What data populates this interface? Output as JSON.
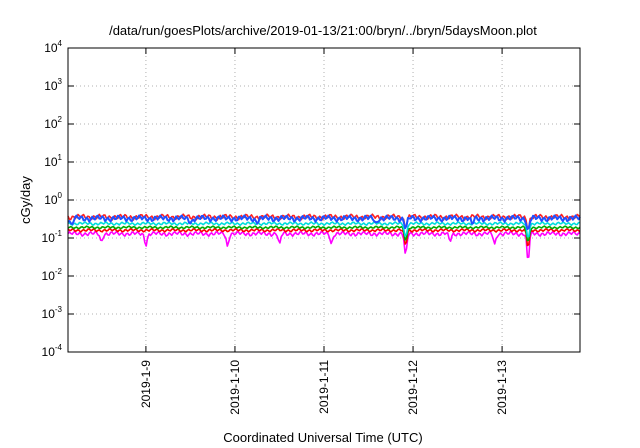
{
  "chart_data": {
    "type": "line",
    "title": "/data/run/goesPlots/archive/2019-01-13/21:00/bryn/../bryn/5daysMoon.plot",
    "xlabel": "Coordinated Universal Time (UTC)",
    "ylabel": "cGy/day",
    "y_scale": "log",
    "ylim": [
      0.0001,
      10000
    ],
    "xlim": [
      "2019-01-08T03:00",
      "2019-01-13T21:00"
    ],
    "grid": true,
    "legend": "none",
    "y_ticks": [
      {
        "base": "10",
        "exp": "-4",
        "value": 0.0001
      },
      {
        "base": "10",
        "exp": "-3",
        "value": 0.001
      },
      {
        "base": "10",
        "exp": "-2",
        "value": 0.01
      },
      {
        "base": "10",
        "exp": "-1",
        "value": 0.1
      },
      {
        "base": "10",
        "exp": "0",
        "value": 1
      },
      {
        "base": "10",
        "exp": "1",
        "value": 10
      },
      {
        "base": "10",
        "exp": "2",
        "value": 100
      },
      {
        "base": "10",
        "exp": "3",
        "value": 1000
      },
      {
        "base": "10",
        "exp": "4",
        "value": 10000
      }
    ],
    "x_ticks": [
      {
        "label": "2019-1-9",
        "value": "2019-01-09T00:00"
      },
      {
        "label": "2019-1-10",
        "value": "2019-01-10T00:00"
      },
      {
        "label": "2019-1-11",
        "value": "2019-01-11T00:00"
      },
      {
        "label": "2019-1-12",
        "value": "2019-01-12T00:00"
      },
      {
        "label": "2019-1-13",
        "value": "2019-01-13T00:00"
      }
    ],
    "series": [
      {
        "color": "#ff00ff",
        "base": 0.13,
        "amp": 0.012,
        "dips": [
          [
            "2019-01-08T12:00",
            0.08
          ],
          [
            "2019-01-09T00:00",
            0.06
          ],
          [
            "2019-01-09T22:00",
            0.06
          ],
          [
            "2019-01-10T12:00",
            0.07
          ],
          [
            "2019-01-11T02:00",
            0.07
          ],
          [
            "2019-01-11T22:00",
            0.03
          ],
          [
            "2019-01-12T10:00",
            0.08
          ],
          [
            "2019-01-12T22:00",
            0.07
          ],
          [
            "2019-01-13T07:00",
            0.015
          ]
        ]
      },
      {
        "color": "#ff0000",
        "base": 0.16,
        "amp": 0.01,
        "dips": [
          [
            "2019-01-11T22:00",
            0.06
          ],
          [
            "2019-01-13T07:00",
            0.05
          ]
        ]
      },
      {
        "color": "#00aa00",
        "base": 0.19,
        "amp": 0.01,
        "dips": [
          [
            "2019-01-11T22:00",
            0.08
          ],
          [
            "2019-01-13T07:00",
            0.07
          ]
        ]
      },
      {
        "color": "#00dddd",
        "base": 0.24,
        "amp": 0.015,
        "dips": [
          [
            "2019-01-11T22:00",
            0.1
          ],
          [
            "2019-01-13T07:00",
            0.09
          ]
        ]
      },
      {
        "color": "#ff2020",
        "base": 0.36,
        "amp": 0.04,
        "dips": [
          [
            "2019-01-11T22:00",
            0.18
          ],
          [
            "2019-01-13T07:00",
            0.16
          ]
        ]
      },
      {
        "color": "#2050ff",
        "base": 0.33,
        "amp": 0.04,
        "dips": [
          [
            "2019-01-08T04:00",
            0.22
          ],
          [
            "2019-01-09T12:00",
            0.24
          ],
          [
            "2019-01-10T06:00",
            0.24
          ],
          [
            "2019-01-11T14:00",
            0.25
          ],
          [
            "2019-01-11T22:00",
            0.17
          ],
          [
            "2019-01-12T16:00",
            0.23
          ],
          [
            "2019-01-13T07:00",
            0.15
          ]
        ]
      }
    ]
  }
}
